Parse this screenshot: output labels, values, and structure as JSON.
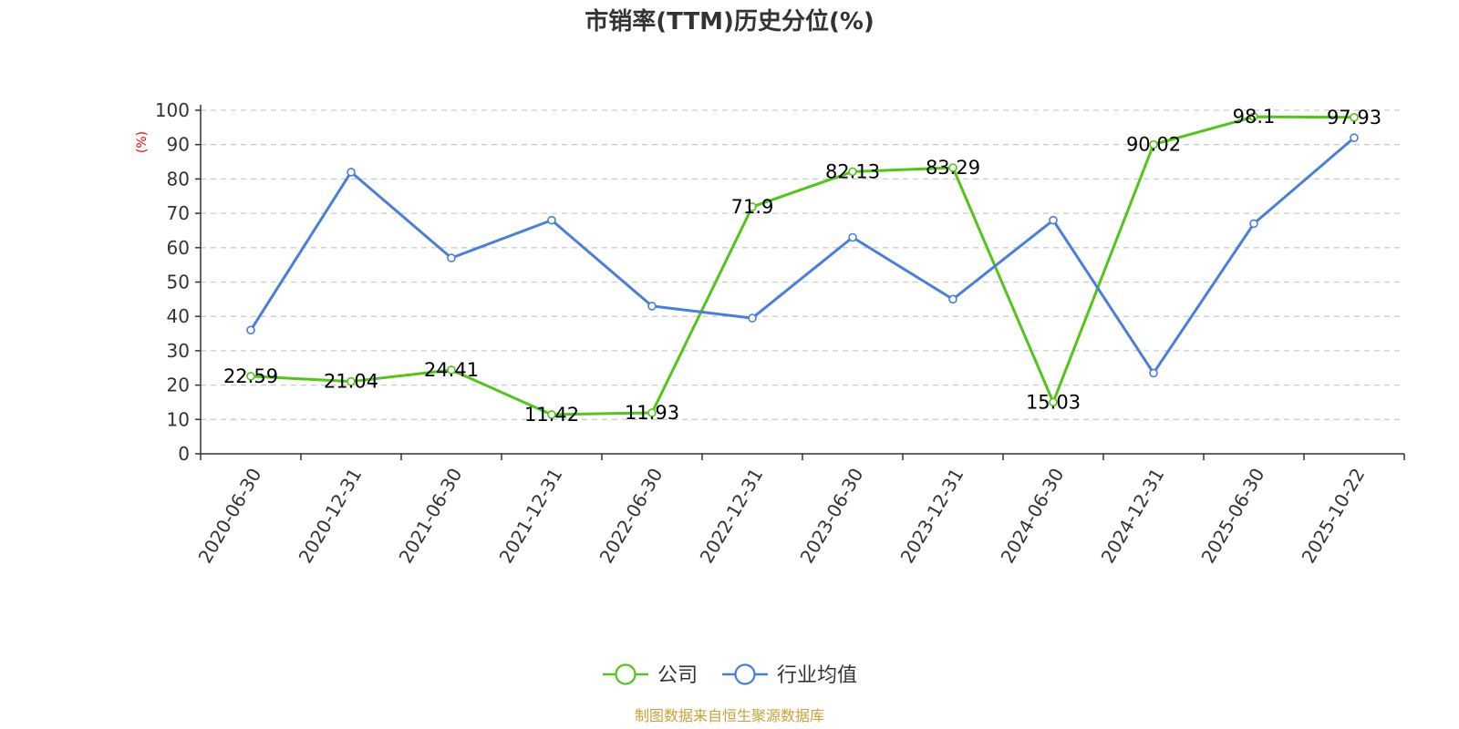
{
  "chart_data": {
    "type": "line",
    "title": "市销率(TTM)历史分位(%)",
    "unit_label": "(%)",
    "ylim": [
      0,
      100
    ],
    "yticks": [
      0,
      10,
      20,
      30,
      40,
      50,
      60,
      70,
      80,
      90,
      100
    ],
    "categories": [
      "2020-06-30",
      "2020-12-31",
      "2021-06-30",
      "2021-12-31",
      "2022-06-30",
      "2022-12-31",
      "2023-06-30",
      "2023-12-31",
      "2024-06-30",
      "2024-12-31",
      "2025-06-30",
      "2025-10-22"
    ],
    "grid": true,
    "legend_position": "bottom-center",
    "series": [
      {
        "name": "公司",
        "color": "#52c41a",
        "values": [
          22.59,
          21.04,
          24.41,
          11.42,
          11.93,
          71.9,
          82.13,
          83.29,
          15.03,
          90.02,
          98.1,
          97.93
        ],
        "labels": [
          "22.59",
          "21.04",
          "24.41",
          "11.42",
          "11.93",
          "71.9",
          "82.13",
          "83.29",
          "15.03",
          "90.02",
          "98.1",
          "97.93"
        ]
      },
      {
        "name": "行业均值",
        "color": "#4a7fd9",
        "values": [
          36,
          82,
          57,
          68,
          43,
          39.5,
          63,
          45,
          68,
          23.5,
          67,
          92
        ]
      }
    ]
  },
  "footer": {
    "source": "制图数据来自恒生聚源数据库"
  }
}
